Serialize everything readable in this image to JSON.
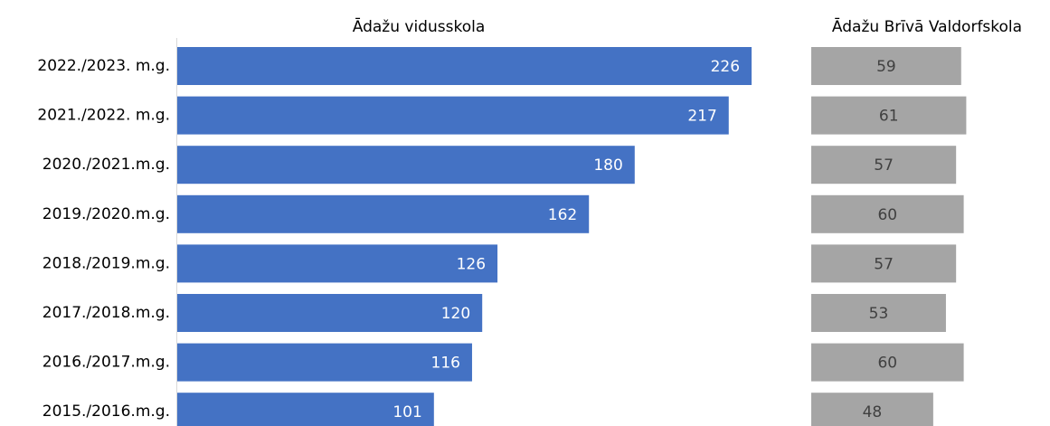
{
  "chart_data": {
    "type": "bar",
    "orientation": "horizontal",
    "categories": [
      "2022./2023. m.g.",
      "2021./2022. m.g.",
      "2020./2021.m.g.",
      "2019./2020.m.g.",
      "2018./2019.m.g.",
      "2017./2018.m.g.",
      "2016./2017.m.g.",
      "2015./2016.m.g."
    ],
    "series": [
      {
        "name": "Ādažu vidusskola",
        "color": "#4472c4",
        "values": [
          226,
          217,
          180,
          162,
          126,
          120,
          116,
          101
        ]
      },
      {
        "name": "Ādažu Brīvā Valdorfskola",
        "color": "#a5a5a5",
        "values": [
          59,
          61,
          57,
          60,
          57,
          53,
          60,
          48
        ]
      }
    ]
  }
}
